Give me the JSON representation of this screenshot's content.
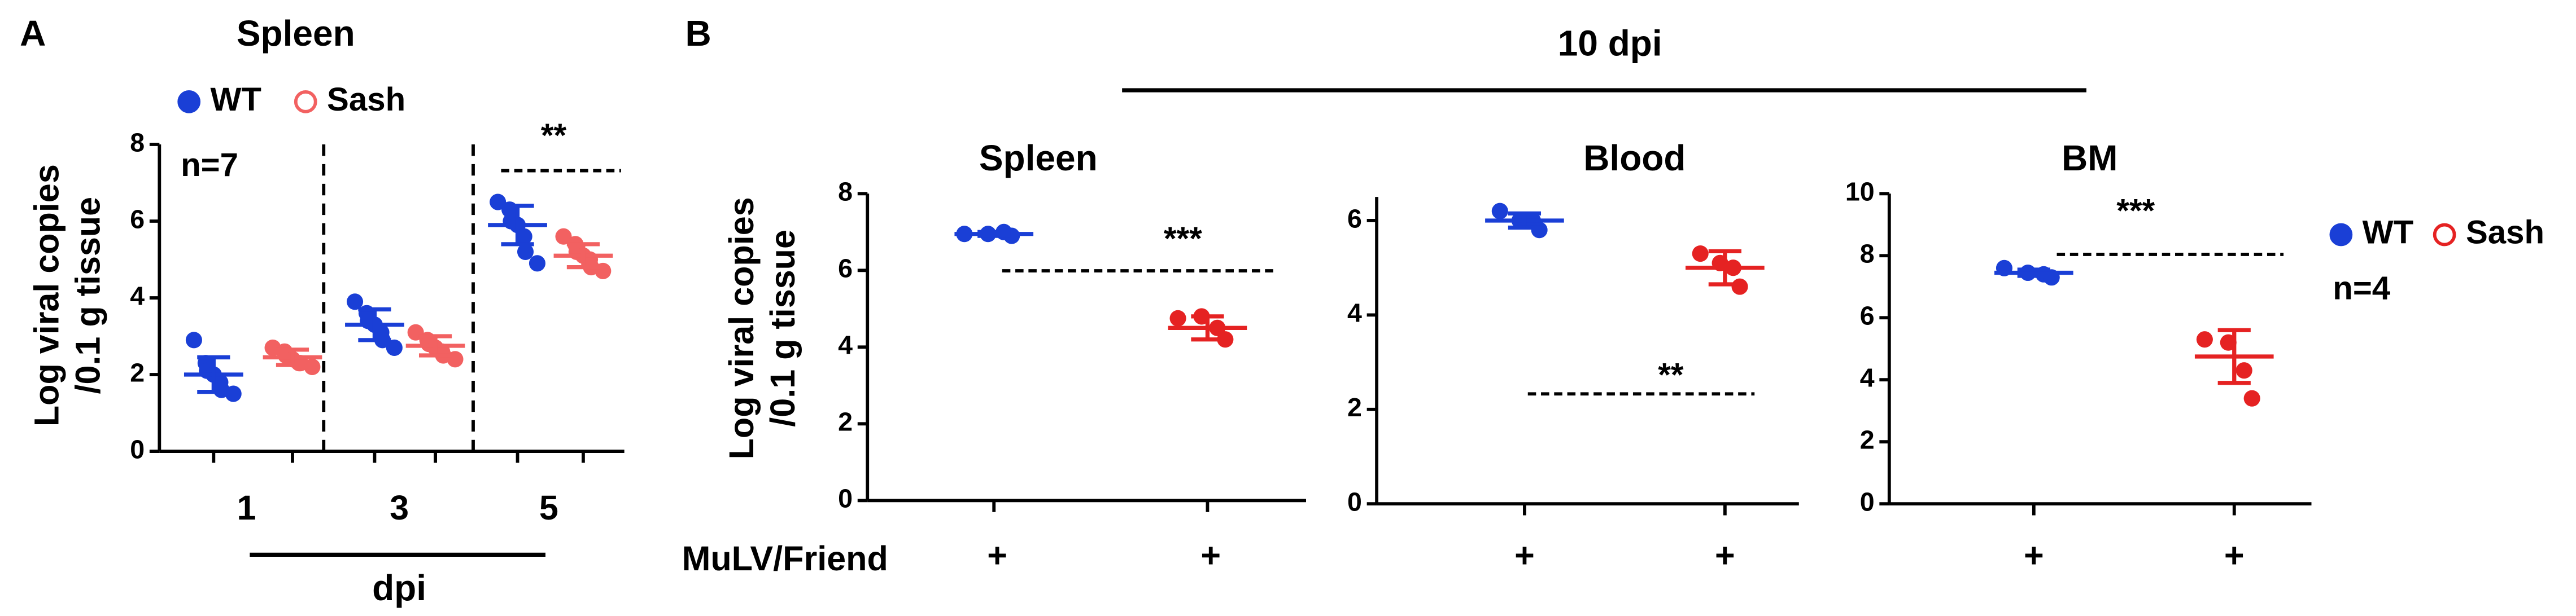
{
  "chart_data": [
    {
      "type": "dot",
      "panel_label": "A",
      "title": "Spleen",
      "ylabel": [
        "Log viral copies",
        "/0.1 g tissue"
      ],
      "xlabel": "dpi",
      "categories": [
        "1",
        "3",
        "5"
      ],
      "ylim": [
        0,
        8
      ],
      "yticks": [
        0,
        2,
        4,
        6,
        8
      ],
      "legend": true,
      "series": [
        {
          "name": "WT",
          "color": "#1a3fd6",
          "legend_marker": "filled",
          "values": [
            [
              2.9,
              2.3,
              2.1,
              2.0,
              1.8,
              1.6,
              1.5
            ],
            [
              3.9,
              3.6,
              3.4,
              3.3,
              3.1,
              2.9,
              2.7
            ],
            [
              6.5,
              6.3,
              6.0,
              5.9,
              5.6,
              5.2,
              4.9
            ]
          ],
          "mean": [
            2.0,
            3.3,
            5.9
          ],
          "sd": [
            0.45,
            0.4,
            0.5
          ]
        },
        {
          "name": "Sash",
          "color": "#f26161",
          "legend_marker": "open",
          "values": [
            [
              2.7,
              2.6,
              2.5,
              2.4,
              2.3,
              2.3,
              2.2
            ],
            [
              3.1,
              2.9,
              2.8,
              2.7,
              2.6,
              2.5,
              2.4
            ],
            [
              5.6,
              5.4,
              5.2,
              5.1,
              5.0,
              4.8,
              4.7
            ]
          ],
          "mean": [
            2.45,
            2.75,
            5.1
          ],
          "sd": [
            0.2,
            0.25,
            0.3
          ]
        }
      ],
      "annotations": [
        "n=7",
        "**"
      ]
    },
    {
      "type": "dot",
      "panel_label": "B",
      "header": "10 dpi",
      "row_label": "MuLV/Friend",
      "title": "Spleen",
      "ylabel": [
        "Log viral copies",
        "/0.1 g tissue"
      ],
      "categories": [
        "+",
        "+"
      ],
      "ylim": [
        0,
        8
      ],
      "yticks": [
        0,
        2,
        4,
        6,
        8
      ],
      "series": [
        {
          "color": "#1a3fd6",
          "values": [
            [
              6.95,
              6.95,
              7.0,
              6.9
            ],
            null
          ],
          "mean": [
            6.95,
            null
          ],
          "sd": [
            0.05,
            null
          ]
        },
        {
          "color": "#e52222",
          "values": [
            null,
            [
              4.75,
              4.8,
              4.5,
              4.2
            ]
          ],
          "mean": [
            null,
            4.5
          ],
          "sd": [
            null,
            0.3
          ]
        }
      ],
      "annotations": [
        "***"
      ]
    },
    {
      "type": "dot",
      "title": "Blood",
      "categories": [
        "+",
        "+"
      ],
      "ylim": [
        0,
        6.5
      ],
      "yticks": [
        0,
        2,
        4,
        6
      ],
      "series": [
        {
          "color": "#1a3fd6",
          "values": [
            [
              6.2,
              6.0,
              6.0,
              5.8
            ],
            null
          ],
          "mean": [
            6.0,
            null
          ],
          "sd": [
            0.15,
            null
          ]
        },
        {
          "color": "#e52222",
          "values": [
            null,
            [
              5.3,
              5.1,
              5.0,
              4.6
            ]
          ],
          "mean": [
            null,
            5.0
          ],
          "sd": [
            null,
            0.35
          ]
        }
      ],
      "annotations": [
        "**"
      ]
    },
    {
      "type": "dot",
      "title": "BM",
      "categories": [
        "+",
        "+"
      ],
      "ylim": [
        0,
        10
      ],
      "yticks": [
        0,
        2,
        4,
        6,
        8,
        10
      ],
      "legend": true,
      "series": [
        {
          "name": "WT",
          "color": "#1a3fd6",
          "legend_marker": "filled",
          "values": [
            [
              7.6,
              7.45,
              7.4,
              7.3
            ],
            null
          ],
          "mean": [
            7.45,
            null
          ],
          "sd": [
            0.1,
            null
          ]
        },
        {
          "name": "Sash",
          "color": "#e52222",
          "legend_marker": "open",
          "values": [
            null,
            [
              5.3,
              5.2,
              4.3,
              3.4
            ]
          ],
          "mean": [
            null,
            4.75
          ],
          "sd": [
            null,
            0.85
          ]
        }
      ],
      "annotations": [
        "***",
        "n=4"
      ]
    }
  ]
}
